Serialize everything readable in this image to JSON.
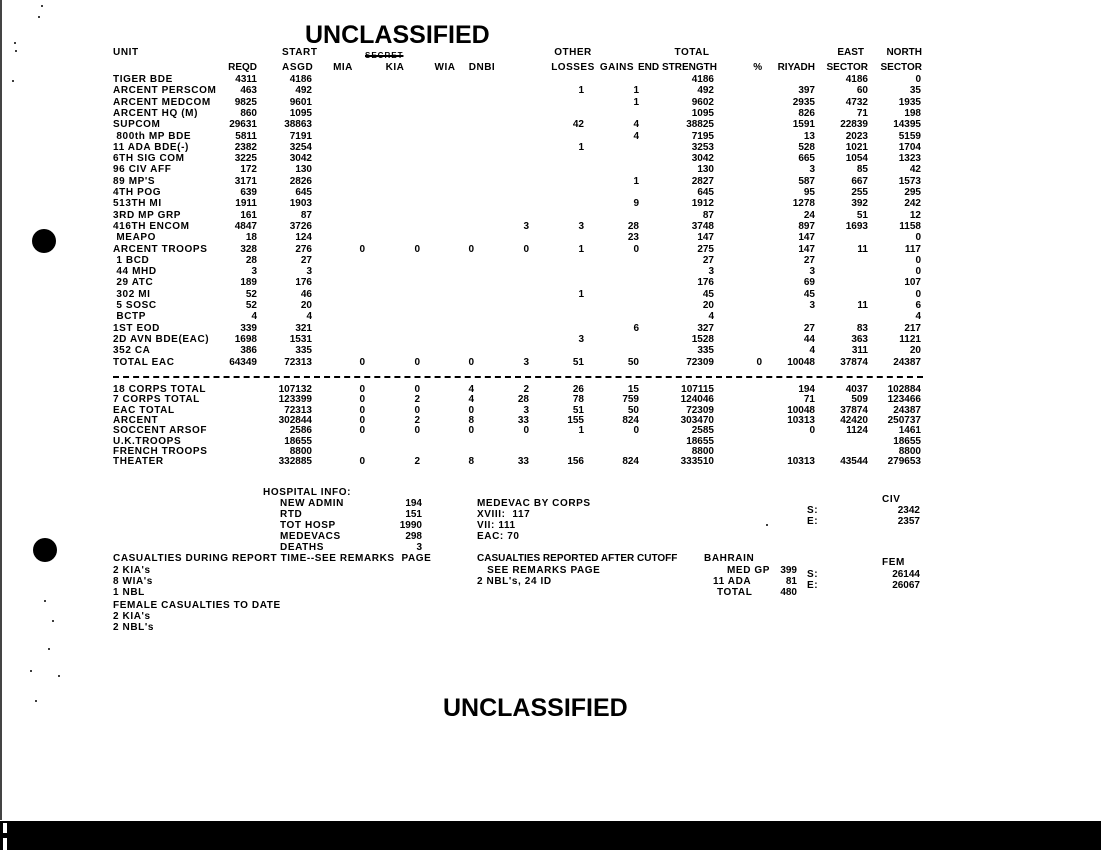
{
  "classification": {
    "top": "UNCLASSIFIED",
    "struck_marking": "SECRET",
    "bottom": "UNCLASSIFIED"
  },
  "table": {
    "headers": {
      "unit": "UNIT",
      "start": "START",
      "reqd": "REQD",
      "asgd": "ASGD",
      "mia": "MIA",
      "kia": "KIA",
      "wia": "WIA",
      "dnbi": "DNBI",
      "other": "OTHER",
      "losses": "LOSSES",
      "gains": "GAINS",
      "end": "END",
      "total": "TOTAL",
      "strength": "STRENGTH",
      "pct": "%",
      "riyadh": "RIYADH",
      "east": "EAST",
      "east_sector": "SECTOR",
      "north": "NORTH",
      "north_sector": "SECTOR"
    },
    "columns": [
      "unit",
      "reqd",
      "asgd",
      "mia",
      "kia",
      "wia",
      "dnbi",
      "other_losses",
      "gains",
      "end_strength",
      "pct",
      "riyadh",
      "east_sector",
      "north_sector"
    ],
    "unit_rows": [
      [
        "TIGER BDE",
        "4311",
        "4186",
        "",
        "",
        "",
        "",
        "",
        "",
        "4186",
        "",
        "",
        "4186",
        "0"
      ],
      [
        "ARCENT PERSCOM",
        "463",
        "492",
        "",
        "",
        "",
        "",
        "1",
        "1",
        "492",
        "",
        "397",
        "60",
        "35"
      ],
      [
        "ARCENT MEDCOM",
        "9825",
        "9601",
        "",
        "",
        "",
        "",
        "",
        "1",
        "9602",
        "",
        "2935",
        "4732",
        "1935"
      ],
      [
        "ARCENT HQ (M)",
        "860",
        "1095",
        "",
        "",
        "",
        "",
        "",
        "",
        "1095",
        "",
        "826",
        "71",
        "198"
      ],
      [
        "SUPCOM",
        "29631",
        "38863",
        "",
        "",
        "",
        "",
        "42",
        "4",
        "38825",
        "",
        "1591",
        "22839",
        "14395"
      ],
      [
        " 800th MP BDE",
        "5811",
        "7191",
        "",
        "",
        "",
        "",
        "",
        "4",
        "7195",
        "",
        "13",
        "2023",
        "5159"
      ],
      [
        "11 ADA BDE(-)",
        "2382",
        "3254",
        "",
        "",
        "",
        "",
        "1",
        "",
        "3253",
        "",
        "528",
        "1021",
        "1704"
      ],
      [
        "6TH SIG COM",
        "3225",
        "3042",
        "",
        "",
        "",
        "",
        "",
        "",
        "3042",
        "",
        "665",
        "1054",
        "1323"
      ],
      [
        "96 CIV AFF",
        "172",
        "130",
        "",
        "",
        "",
        "",
        "",
        "",
        "130",
        "",
        "3",
        "85",
        "42"
      ],
      [
        "89 MP'S",
        "3171",
        "2826",
        "",
        "",
        "",
        "",
        "",
        "1",
        "2827",
        "",
        "587",
        "667",
        "1573"
      ],
      [
        "4TH POG",
        "639",
        "645",
        "",
        "",
        "",
        "",
        "",
        "",
        "645",
        "",
        "95",
        "255",
        "295"
      ],
      [
        "513TH MI",
        "1911",
        "1903",
        "",
        "",
        "",
        "",
        "",
        "9",
        "1912",
        "",
        "1278",
        "392",
        "242"
      ],
      [
        "3RD MP GRP",
        "161",
        "87",
        "",
        "",
        "",
        "",
        "",
        "",
        "87",
        "",
        "24",
        "51",
        "12"
      ],
      [
        "416TH ENCOM",
        "4847",
        "3726",
        "",
        "",
        "",
        "3",
        "3",
        "28",
        "3748",
        "",
        "897",
        "1693",
        "1158"
      ],
      [
        " MEAPO",
        "18",
        "124",
        "",
        "",
        "",
        "",
        "",
        "23",
        "147",
        "",
        "147",
        "",
        "0"
      ],
      [
        "ARCENT TROOPS",
        "328",
        "276",
        "0",
        "0",
        "0",
        "0",
        "1",
        "0",
        "275",
        "",
        "147",
        "11",
        "117"
      ],
      [
        " 1 BCD",
        "28",
        "27",
        "",
        "",
        "",
        "",
        "",
        "",
        "27",
        "",
        "27",
        "",
        "0"
      ],
      [
        " 44 MHD",
        "3",
        "3",
        "",
        "",
        "",
        "",
        "",
        "",
        "3",
        "",
        "3",
        "",
        "0"
      ],
      [
        " 29 ATC",
        "189",
        "176",
        "",
        "",
        "",
        "",
        "",
        "",
        "176",
        "",
        "69",
        "",
        "107"
      ],
      [
        " 302 MI",
        "52",
        "46",
        "",
        "",
        "",
        "",
        "1",
        "",
        "45",
        "",
        "45",
        "",
        "0"
      ],
      [
        " 5 SOSC",
        "52",
        "20",
        "",
        "",
        "",
        "",
        "",
        "",
        "20",
        "",
        "3",
        "11",
        "6"
      ],
      [
        " BCTP",
        "4",
        "4",
        "",
        "",
        "",
        "",
        "",
        "",
        "4",
        "",
        "",
        "",
        "4"
      ],
      [
        "1ST EOD",
        "339",
        "321",
        "",
        "",
        "",
        "",
        "",
        "6",
        "327",
        "",
        "27",
        "83",
        "217"
      ],
      [
        "2D AVN BDE(EAC)",
        "1698",
        "1531",
        "",
        "",
        "",
        "",
        "3",
        "",
        "1528",
        "",
        "44",
        "363",
        "1121"
      ],
      [
        "352 CA",
        "386",
        "335",
        "",
        "",
        "",
        "",
        "",
        "",
        "335",
        "",
        "4",
        "311",
        "20"
      ],
      [
        "TOTAL EAC",
        "64349",
        "72313",
        "0",
        "0",
        "0",
        "3",
        "51",
        "50",
        "72309",
        "0",
        "10048",
        "37874",
        "24387"
      ]
    ],
    "summary_rows": [
      [
        "18 CORPS TOTAL",
        "",
        "107132",
        "0",
        "0",
        "4",
        "2",
        "26",
        "15",
        "107115",
        "",
        "194",
        "4037",
        "102884"
      ],
      [
        "7 CORPS TOTAL",
        "",
        "123399",
        "0",
        "2",
        "4",
        "28",
        "78",
        "759",
        "124046",
        "",
        "71",
        "509",
        "123466"
      ],
      [
        "EAC TOTAL",
        "",
        "72313",
        "0",
        "0",
        "0",
        "3",
        "51",
        "50",
        "72309",
        "",
        "10048",
        "37874",
        "24387"
      ],
      [
        "ARCENT",
        "",
        "302844",
        "0",
        "2",
        "8",
        "33",
        "155",
        "824",
        "303470",
        "",
        "10313",
        "42420",
        "250737"
      ],
      [
        "SOCCENT ARSOF",
        "",
        "2586",
        "0",
        "0",
        "0",
        "0",
        "1",
        "0",
        "2585",
        "",
        "0",
        "1124",
        "1461"
      ],
      [
        "U.K.TROOPS",
        "",
        "18655",
        "",
        "",
        "",
        "",
        "",
        "",
        "18655",
        "",
        "",
        "",
        "18655"
      ],
      [
        "FRENCH TROOPS",
        "",
        "8800",
        "",
        "",
        "",
        "",
        "",
        "",
        "8800",
        "",
        "",
        "",
        "8800"
      ],
      [
        "THEATER",
        "",
        "332885",
        "0",
        "2",
        "8",
        "33",
        "156",
        "824",
        "333510",
        "",
        "10313",
        "43544",
        "279653"
      ]
    ]
  },
  "hospital": {
    "title": "HOSPITAL INFO:",
    "items": [
      {
        "label": "NEW ADMIN",
        "value": "194"
      },
      {
        "label": "RTD",
        "value": "151"
      },
      {
        "label": "TOT HOSP",
        "value": "1990"
      },
      {
        "label": "MEDEVACS",
        "value": "298"
      },
      {
        "label": "DEATHS",
        "value": "3"
      }
    ]
  },
  "medevac": {
    "title": "MEDEVAC BY CORPS",
    "lines": [
      "XVIII:  117",
      "VII: 111",
      "EAC: 70"
    ]
  },
  "civ": {
    "title": "CIV",
    "s_label": "S:",
    "s_value": "2342",
    "e_label": "E:",
    "e_value": "2357"
  },
  "fem": {
    "title": "FEM",
    "s_label": "S:",
    "s_value": "26144",
    "e_label": "E:",
    "e_value": "26067"
  },
  "casualties_report": {
    "title": "CASUALTIES DURING REPORT TIME--SEE REMARKS  PAGE",
    "lines": [
      "2 KIA's",
      "8 WIA's",
      "1 NBL"
    ]
  },
  "casualties_after": {
    "title": "CASUALTIES REPORTED AFTER CUTOFF",
    "lines": [
      "   SEE REMARKS PAGE",
      "2 NBL's, 24 ID"
    ]
  },
  "bahrain": {
    "title": "BAHRAIN",
    "items": [
      {
        "label": "MED GP",
        "value": "399"
      },
      {
        "label": "11 ADA",
        "value": "81"
      },
      {
        "label": "TOTAL",
        "value": "480"
      }
    ]
  },
  "female": {
    "title": "FEMALE CASUALTIES TO DATE",
    "lines": [
      "2 KIA's",
      "2 NBL's"
    ]
  }
}
